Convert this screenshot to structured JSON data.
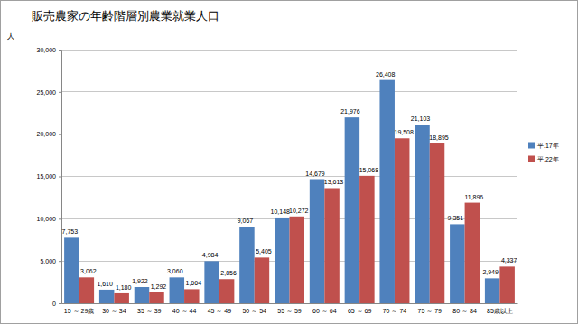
{
  "chart_data": {
    "type": "bar",
    "title": "販売農家の年齢階層別農業就業人口",
    "y_label": "人",
    "categories": [
      "15 ～ 29歳",
      "30 ～ 34",
      "35 ～ 39",
      "40 ～ 44",
      "45 ～ 49",
      "50 ～ 54",
      "55 ～ 59",
      "60 ～ 64",
      "65 ～ 69",
      "70 ～ 74",
      "75 ～ 79",
      "80 ～ 84",
      "85歳以上"
    ],
    "series": [
      {
        "name": "平.17年",
        "color": "#4f81bd",
        "values": [
          7753,
          1610,
          1922,
          3060,
          4984,
          9067,
          10148,
          14679,
          21976,
          26408,
          21103,
          9351,
          2949
        ],
        "value_labels": [
          "7,753",
          "1,610",
          "1,922",
          "3,060",
          "4,984",
          "9,067",
          "10,148",
          "14,679",
          "21,976",
          "26,408",
          "21,103",
          "9,351",
          "2,949"
        ]
      },
      {
        "name": "平.22年",
        "color": "#c0504d",
        "values": [
          3062,
          1180,
          1292,
          1664,
          2856,
          5405,
          10272,
          13613,
          15068,
          19508,
          18895,
          11896,
          4337
        ],
        "value_labels": [
          "3,062",
          "1,180",
          "1,292",
          "1,664",
          "2,856",
          "5,405",
          "10,272",
          "13,613",
          "15,068",
          "19,508",
          "18,895",
          "11,896",
          "4,337"
        ]
      }
    ],
    "ylim": [
      0,
      30000
    ],
    "yticks": [
      0,
      {
        "value": 5000,
        "label": "5,000"
      },
      {
        "value": 10000,
        "label": "10,000"
      },
      {
        "value": 15000,
        "label": "15,000"
      },
      {
        "value": 20000,
        "label": "20,000"
      },
      {
        "value": 25000,
        "label": "25,000"
      },
      {
        "value": 30000,
        "label": "30,000"
      }
    ],
    "grid": true,
    "legend": "right",
    "data_labels": true
  }
}
